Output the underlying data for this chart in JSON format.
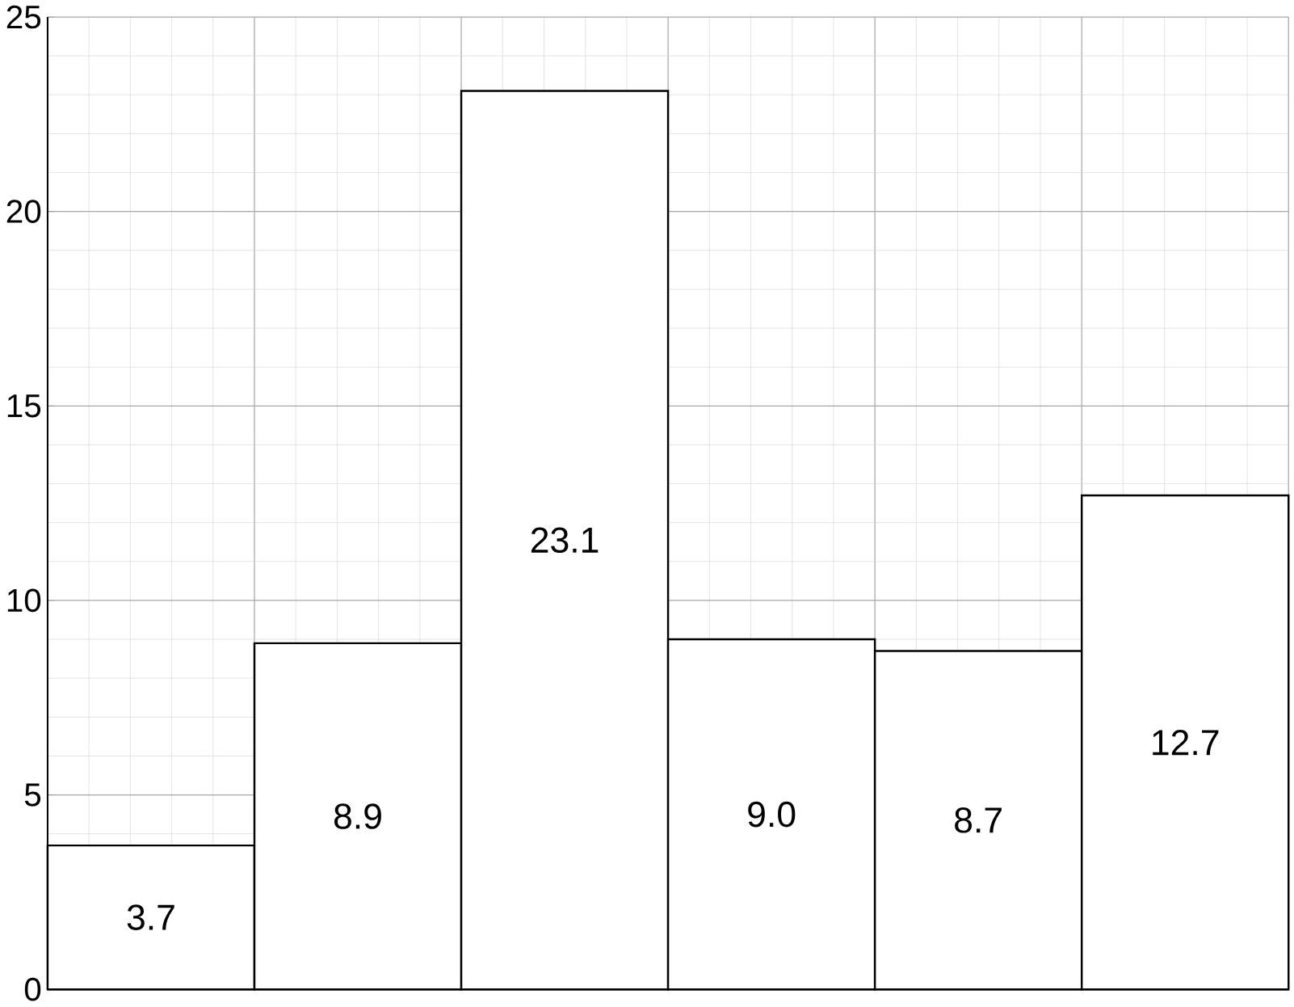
{
  "chart_data": {
    "type": "bar",
    "categories": [
      null,
      null,
      null,
      null,
      null,
      null
    ],
    "values": [
      3.7,
      8.9,
      23.1,
      9.0,
      8.7,
      12.7
    ],
    "value_labels": [
      "3.7",
      "8.9",
      "23.1",
      "9.0",
      "8.7",
      "12.7"
    ],
    "color": "#000000",
    "ylim": [
      0,
      25
    ],
    "yticks": [
      0,
      5,
      10,
      15,
      20,
      25
    ],
    "grid": true,
    "tick_labels": "y"
  }
}
